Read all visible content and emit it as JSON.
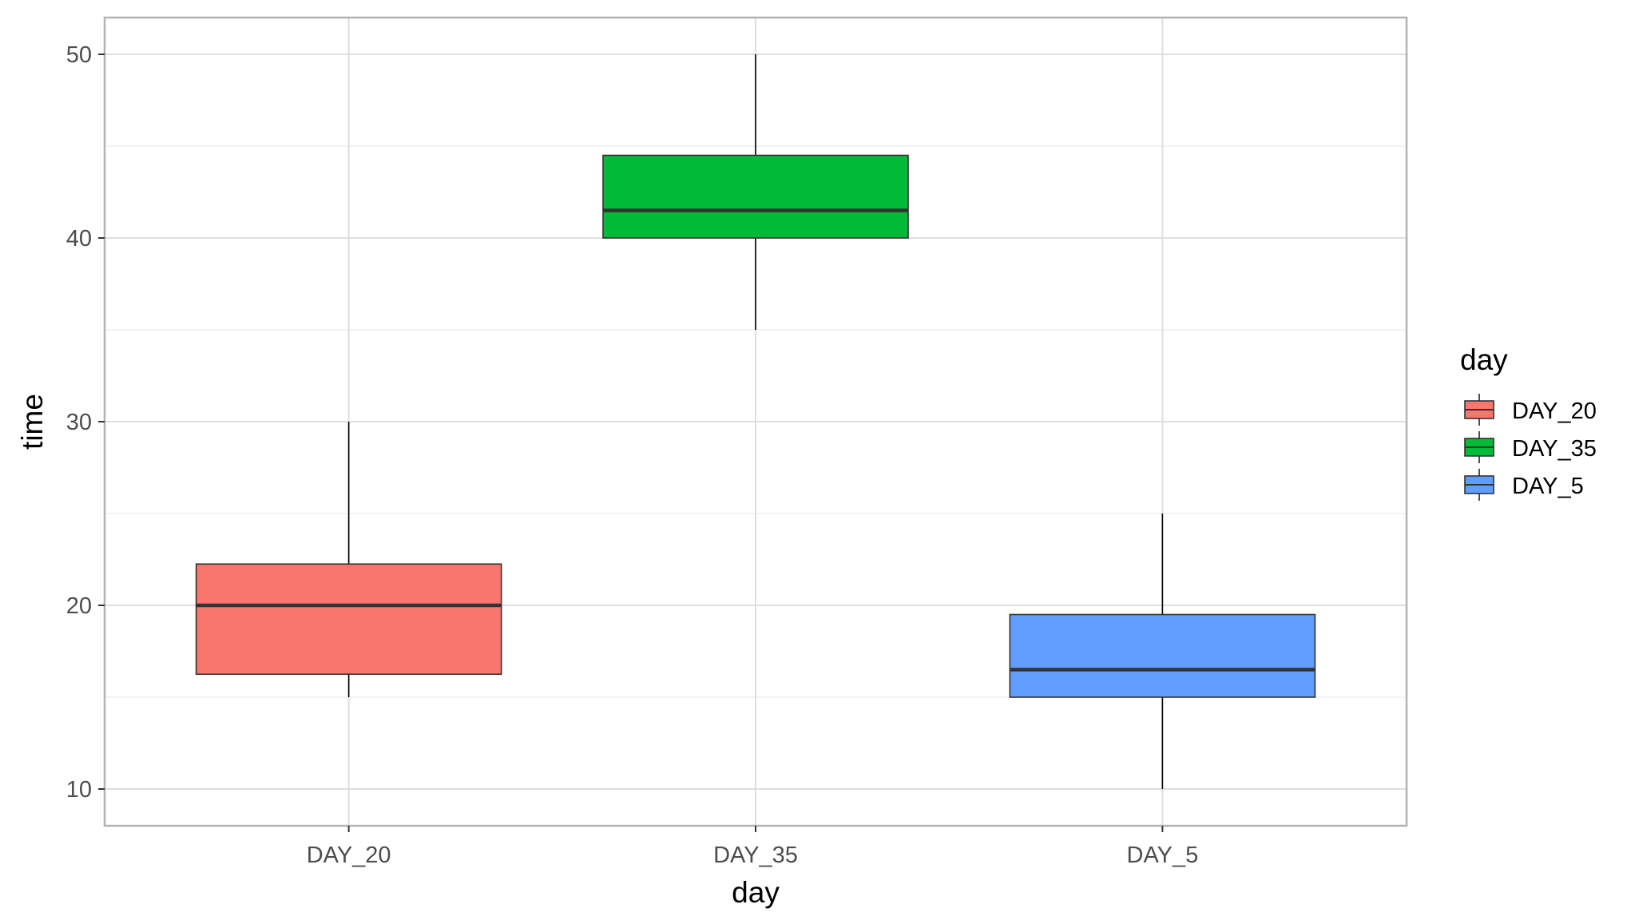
{
  "chart_data": {
    "type": "box",
    "title": "",
    "xlabel": "day",
    "ylabel": "time",
    "categories": [
      "DAY_20",
      "DAY_35",
      "DAY_5"
    ],
    "yticks": [
      10,
      20,
      30,
      40,
      50
    ],
    "ylim": [
      8,
      52
    ],
    "grid": true,
    "legend": {
      "title": "day",
      "position": "right",
      "entries": [
        "DAY_20",
        "DAY_35",
        "DAY_5"
      ]
    },
    "series": [
      {
        "category": "DAY_20",
        "color": "#F8766D",
        "min": 15,
        "q1": 16.25,
        "median": 20,
        "q3": 22.25,
        "max": 30
      },
      {
        "category": "DAY_35",
        "color": "#00BA38",
        "min": 35,
        "q1": 40,
        "median": 41.5,
        "q3": 44.5,
        "max": 50
      },
      {
        "category": "DAY_5",
        "color": "#619CFF",
        "min": 10,
        "q1": 15,
        "median": 16.5,
        "q3": 19.5,
        "max": 25
      }
    ]
  }
}
